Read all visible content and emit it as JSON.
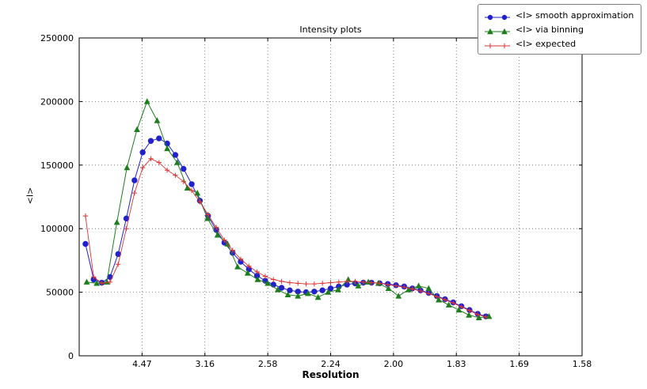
{
  "chart_data": {
    "type": "line",
    "title": "Intensity plots",
    "xlabel": "Resolution",
    "ylabel": "<I>",
    "x_axis": {
      "scale": "linear in 1/d^2, labeled with resolution d (A)",
      "range": [
        0.0,
        0.4
      ],
      "tick_positions": [
        0.05,
        0.1,
        0.15,
        0.2,
        0.25,
        0.3,
        0.35,
        0.4
      ],
      "tick_labels": [
        "4.47",
        "3.16",
        "2.58",
        "2.24",
        "2.00",
        "1.83",
        "1.69",
        "1.58"
      ]
    },
    "y_axis": {
      "range": [
        0,
        250000
      ],
      "ticks": [
        0,
        50000,
        100000,
        150000,
        200000,
        250000
      ],
      "tick_labels": [
        "0",
        "50000",
        "100000",
        "150000",
        "200000",
        "250000"
      ]
    },
    "grid": "dotted both axes",
    "legend_position": "upper right, outside top of axes",
    "series": [
      {
        "name": "<I> smooth approximation",
        "color": "#2222cc",
        "marker": "circle",
        "line_width": 1.0,
        "x": [
          0.005,
          0.0115,
          0.018,
          0.0245,
          0.031,
          0.0375,
          0.044,
          0.0505,
          0.057,
          0.0635,
          0.07,
          0.0765,
          0.083,
          0.0895,
          0.096,
          0.1025,
          0.109,
          0.1155,
          0.122,
          0.1285,
          0.135,
          0.1415,
          0.148,
          0.1545,
          0.161,
          0.1675,
          0.174,
          0.1805,
          0.187,
          0.1935,
          0.2,
          0.2065,
          0.213,
          0.2195,
          0.226,
          0.2325,
          0.239,
          0.2455,
          0.252,
          0.2585,
          0.265,
          0.2715,
          0.278,
          0.2845,
          0.291,
          0.2975,
          0.304,
          0.3105,
          0.317,
          0.3235
        ],
        "y": [
          88000,
          60000,
          57500,
          62000,
          80000,
          108000,
          138000,
          160000,
          169000,
          171000,
          167000,
          158000,
          147000,
          135000,
          122000,
          110000,
          99000,
          89000,
          81000,
          74000,
          68000,
          63000,
          59000,
          56000,
          53500,
          51500,
          50500,
          50000,
          50500,
          51500,
          53000,
          54500,
          56000,
          57000,
          57500,
          57500,
          57000,
          56500,
          55500,
          54500,
          53000,
          51500,
          49500,
          47000,
          44500,
          42000,
          39000,
          36000,
          33000,
          31000
        ]
      },
      {
        "name": "<I> via binning",
        "color": "#1e7d1e",
        "marker": "triangle",
        "line_width": 1.0,
        "x": [
          0.006,
          0.014,
          0.022,
          0.03,
          0.038,
          0.046,
          0.054,
          0.062,
          0.07,
          0.078,
          0.086,
          0.094,
          0.102,
          0.11,
          0.118,
          0.126,
          0.134,
          0.142,
          0.15,
          0.158,
          0.166,
          0.174,
          0.182,
          0.19,
          0.198,
          0.206,
          0.214,
          0.222,
          0.23,
          0.238,
          0.246,
          0.254,
          0.262,
          0.27,
          0.278,
          0.286,
          0.294,
          0.302,
          0.31,
          0.318,
          0.326
        ],
        "y": [
          58000,
          57000,
          58000,
          105000,
          148000,
          178000,
          200000,
          185000,
          163000,
          152000,
          132000,
          128000,
          108000,
          95000,
          88000,
          70000,
          65000,
          60000,
          57000,
          52000,
          48000,
          47000,
          49000,
          46000,
          50000,
          52000,
          60000,
          55000,
          58000,
          57000,
          53000,
          47000,
          52000,
          55000,
          53000,
          44000,
          40000,
          36000,
          32000,
          30000,
          31000
        ]
      },
      {
        "name": "<I> expected",
        "color": "#dd3333",
        "marker": "plus",
        "line_width": 0.9,
        "x": [
          0.005,
          0.0115,
          0.018,
          0.0245,
          0.031,
          0.0375,
          0.044,
          0.0505,
          0.057,
          0.0635,
          0.07,
          0.0765,
          0.083,
          0.0895,
          0.096,
          0.1025,
          0.109,
          0.1155,
          0.122,
          0.1285,
          0.135,
          0.1415,
          0.148,
          0.1545,
          0.161,
          0.1675,
          0.174,
          0.1805,
          0.187,
          0.1935,
          0.2,
          0.2065,
          0.213,
          0.2195,
          0.226,
          0.2325,
          0.239,
          0.2455,
          0.252,
          0.2585,
          0.265,
          0.2715,
          0.278,
          0.2845,
          0.291,
          0.2975,
          0.304,
          0.3105,
          0.317,
          0.3235
        ],
        "y": [
          110000,
          62000,
          57000,
          58000,
          72000,
          100000,
          128000,
          148000,
          155000,
          152000,
          146000,
          142000,
          137000,
          130000,
          121000,
          111000,
          101000,
          91000,
          83000,
          76000,
          70500,
          66000,
          62500,
          60000,
          58500,
          57500,
          57000,
          56500,
          56500,
          57000,
          57500,
          58000,
          58500,
          58500,
          58000,
          57500,
          57000,
          56000,
          55000,
          54000,
          52500,
          51000,
          49000,
          46500,
          44000,
          41500,
          38500,
          35500,
          32500,
          30500
        ]
      }
    ]
  }
}
